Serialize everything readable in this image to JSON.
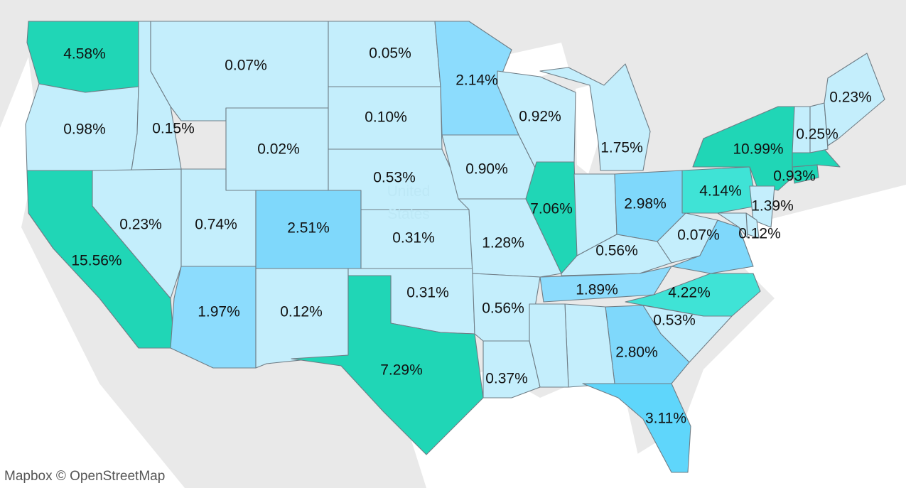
{
  "map": {
    "attribution": "Mapbox © OpenStreetMap",
    "country_label_line1": "United",
    "country_label_line2": "States",
    "legend_colors": {
      "land": "#e9e9e9",
      "water": "#ffffff",
      "low": "#c4eefc",
      "mid": "#8cdcfd",
      "high": "#3fe3d6",
      "highest": "#20d6b6"
    },
    "states": [
      {
        "id": "WA",
        "value": "4.58%"
      },
      {
        "id": "OR",
        "value": "0.98%"
      },
      {
        "id": "CA",
        "value": "15.56%"
      },
      {
        "id": "ID",
        "value": "0.15%"
      },
      {
        "id": "NV",
        "value": "0.23%"
      },
      {
        "id": "MT",
        "value": "0.07%"
      },
      {
        "id": "WY",
        "value": "0.02%"
      },
      {
        "id": "UT",
        "value": "0.74%"
      },
      {
        "id": "AZ",
        "value": "1.97%"
      },
      {
        "id": "CO",
        "value": "2.51%"
      },
      {
        "id": "NM",
        "value": "0.12%"
      },
      {
        "id": "ND",
        "value": "0.05%"
      },
      {
        "id": "SD",
        "value": "0.10%"
      },
      {
        "id": "NE",
        "value": "0.53%"
      },
      {
        "id": "KS",
        "value": "0.31%"
      },
      {
        "id": "OK",
        "value": "0.31%"
      },
      {
        "id": "TX",
        "value": "7.29%"
      },
      {
        "id": "MN",
        "value": "2.14%"
      },
      {
        "id": "IA",
        "value": "0.90%"
      },
      {
        "id": "MO",
        "value": "1.28%"
      },
      {
        "id": "AR",
        "value": "0.56%"
      },
      {
        "id": "LA",
        "value": "0.37%"
      },
      {
        "id": "WI",
        "value": "0.92%"
      },
      {
        "id": "IL",
        "value": "7.06%"
      },
      {
        "id": "MI",
        "value": "1.75%"
      },
      {
        "id": "OH",
        "value": "2.98%"
      },
      {
        "id": "KY",
        "value": "0.56%"
      },
      {
        "id": "TN",
        "value": "1.89%"
      },
      {
        "id": "WV",
        "value": "0.07%"
      },
      {
        "id": "NC",
        "value": "4.22%"
      },
      {
        "id": "SC",
        "value": "0.53%"
      },
      {
        "id": "GA",
        "value": "2.80%"
      },
      {
        "id": "FL",
        "value": "3.11%"
      },
      {
        "id": "PA",
        "value": "4.14%"
      },
      {
        "id": "NY",
        "value": "10.99%"
      },
      {
        "id": "NJ",
        "value": "1.39%"
      },
      {
        "id": "DE",
        "value": "0.12%"
      },
      {
        "id": "MA",
        "value": "0.93%"
      },
      {
        "id": "NH",
        "value": "0.25%"
      },
      {
        "id": "ME",
        "value": "0.23%"
      }
    ]
  }
}
